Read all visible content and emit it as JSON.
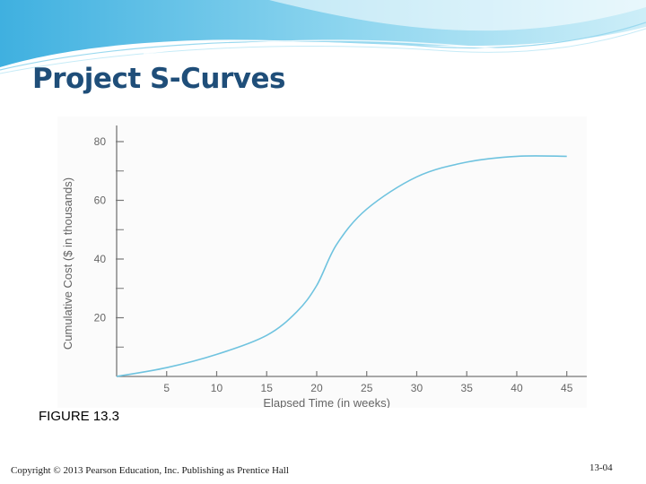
{
  "slide": {
    "title": "Project S-Curves",
    "figure_label": "FIGURE 13.3",
    "footer_copyright": "Copyright © 2013 Pearson Education, Inc. Publishing as Prentice Hall",
    "page_number": "13-04"
  },
  "colors": {
    "title": "#1f4e79",
    "curve": "#6fc3df",
    "axis": "#777777",
    "banner": "#5bc0e6"
  },
  "chart_data": {
    "type": "line",
    "title": "",
    "xlabel": "Elapsed Time (in weeks)",
    "ylabel": "Cumulative Cost ($ in thousands)",
    "xlim": [
      0,
      47
    ],
    "ylim": [
      0,
      80
    ],
    "x_ticks": [
      5,
      10,
      15,
      20,
      25,
      30,
      35,
      40,
      45
    ],
    "y_ticks": [
      20,
      40,
      60,
      80
    ],
    "y_minor_ticks": [
      10,
      30,
      50,
      70
    ],
    "grid": false,
    "series": [
      {
        "x": [
          0,
          5,
          10,
          15,
          18,
          20,
          22,
          25,
          30,
          35,
          40,
          45
        ],
        "values": [
          0,
          3,
          7.5,
          14,
          22,
          31,
          45,
          57,
          68,
          73,
          75,
          75
        ]
      }
    ]
  }
}
